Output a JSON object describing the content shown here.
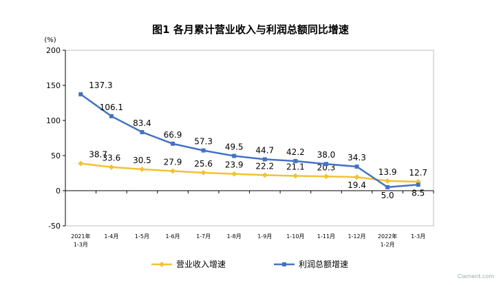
{
  "chart_data": {
    "type": "line",
    "title": "图1  各月累计营业收入与利润总额同比增速",
    "ylabel": "(%)",
    "ylim": [
      -50,
      200
    ],
    "yticks": [
      -50,
      0,
      50,
      100,
      150,
      200
    ],
    "grid": false,
    "legend": "bottom",
    "categories": [
      [
        "2021年",
        "1-3月"
      ],
      [
        "1-4月"
      ],
      [
        "1-5月"
      ],
      [
        "1-6月"
      ],
      [
        "1-7月"
      ],
      [
        "1-8月"
      ],
      [
        "1-9月"
      ],
      [
        "1-10月"
      ],
      [
        "1-11月"
      ],
      [
        "1-12月"
      ],
      [
        "2022年",
        "1-2月"
      ],
      [
        "1-3月"
      ]
    ],
    "series": [
      {
        "name": "营业收入增速",
        "color": "#f2c232",
        "values": [
          38.7,
          33.6,
          30.5,
          27.9,
          25.6,
          23.9,
          22.2,
          21.1,
          20.3,
          19.4,
          13.9,
          12.7
        ]
      },
      {
        "name": "利润总额增速",
        "color": "#4472c4",
        "values": [
          137.3,
          106.1,
          83.4,
          66.9,
          57.3,
          49.5,
          44.7,
          42.2,
          38.0,
          34.3,
          5.0,
          8.5
        ]
      }
    ]
  },
  "watermark": "Ciament.com"
}
